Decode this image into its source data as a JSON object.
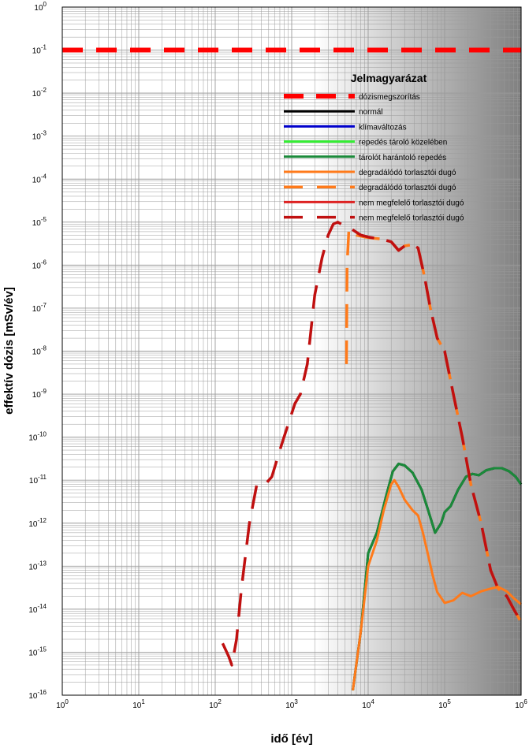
{
  "chart_data": {
    "type": "line",
    "xlabel": "idő [év]",
    "ylabel": "effektív dózis [mSv/év]",
    "x_scale": "log",
    "y_scale": "log",
    "xlim": [
      1,
      1000000
    ],
    "ylim": [
      1e-16,
      1
    ],
    "grid": true,
    "x_ticks": [
      {
        "base": "10",
        "exp": "0"
      },
      {
        "base": "10",
        "exp": "1"
      },
      {
        "base": "10",
        "exp": "2"
      },
      {
        "base": "10",
        "exp": "3"
      },
      {
        "base": "10",
        "exp": "4"
      },
      {
        "base": "10",
        "exp": "5"
      },
      {
        "base": "10",
        "exp": "6"
      }
    ],
    "y_ticks": [
      {
        "base": "10",
        "exp": "0"
      },
      {
        "base": "10",
        "exp": "-1"
      },
      {
        "base": "10",
        "exp": "-2"
      },
      {
        "base": "10",
        "exp": "-3"
      },
      {
        "base": "10",
        "exp": "-4"
      },
      {
        "base": "10",
        "exp": "-5"
      },
      {
        "base": "10",
        "exp": "-6"
      },
      {
        "base": "10",
        "exp": "-7"
      },
      {
        "base": "10",
        "exp": "-8"
      },
      {
        "base": "10",
        "exp": "-9"
      },
      {
        "base": "10",
        "exp": "-10"
      },
      {
        "base": "10",
        "exp": "-11"
      },
      {
        "base": "10",
        "exp": "-12"
      },
      {
        "base": "10",
        "exp": "-13"
      },
      {
        "base": "10",
        "exp": "-14"
      },
      {
        "base": "10",
        "exp": "-15"
      },
      {
        "base": "10",
        "exp": "-16"
      }
    ],
    "legend": {
      "title": "Jelmagyarázat",
      "placement": "upper-right"
    },
    "series": [
      {
        "name": "dózismegszorítás",
        "color": "#ff0000",
        "style": "dashed-thick",
        "points": [
          [
            1,
            0.1
          ],
          [
            1000000,
            0.1
          ]
        ]
      },
      {
        "name": "normál",
        "color": "#000000",
        "style": "solid",
        "points": [
          [
            6300,
            1.3e-16
          ],
          [
            8000,
            3e-15
          ],
          [
            10000,
            2e-13
          ],
          [
            13000,
            6e-13
          ],
          [
            17000,
            4e-12
          ],
          [
            21000,
            1.6e-11
          ],
          [
            25000,
            2.4e-11
          ],
          [
            30000,
            2.2e-11
          ],
          [
            38000,
            1.5e-11
          ],
          [
            50000,
            6e-12
          ],
          [
            62000,
            1.8e-12
          ],
          [
            75000,
            6e-13
          ],
          [
            90000,
            1e-12
          ],
          [
            100000,
            1.8e-12
          ],
          [
            120000,
            2.5e-12
          ],
          [
            150000,
            6e-12
          ],
          [
            190000,
            1.2e-11
          ],
          [
            230000,
            1.4e-11
          ],
          [
            280000,
            1.3e-11
          ],
          [
            350000,
            1.7e-11
          ],
          [
            450000,
            1.9e-11
          ],
          [
            560000,
            1.9e-11
          ],
          [
            700000,
            1.6e-11
          ],
          [
            850000,
            1.2e-11
          ],
          [
            1000000,
            8e-12
          ]
        ]
      },
      {
        "name": "klímaváltozás",
        "color": "#0000cc",
        "style": "solid",
        "points": []
      },
      {
        "name": "repedés tároló közelében",
        "color": "#33ee33",
        "style": "solid",
        "points": []
      },
      {
        "name": "tárolót harántoló repedés",
        "color": "#1a8a3a",
        "style": "solid",
        "points": [
          [
            6300,
            1.3e-16
          ],
          [
            8000,
            3e-15
          ],
          [
            10000,
            2e-13
          ],
          [
            13000,
            6e-13
          ],
          [
            17000,
            4e-12
          ],
          [
            21000,
            1.6e-11
          ],
          [
            25000,
            2.4e-11
          ],
          [
            30000,
            2.2e-11
          ],
          [
            38000,
            1.5e-11
          ],
          [
            50000,
            6e-12
          ],
          [
            62000,
            1.8e-12
          ],
          [
            75000,
            6e-13
          ],
          [
            90000,
            1e-12
          ],
          [
            100000,
            1.8e-12
          ],
          [
            120000,
            2.5e-12
          ],
          [
            150000,
            6e-12
          ],
          [
            190000,
            1.2e-11
          ],
          [
            230000,
            1.4e-11
          ],
          [
            280000,
            1.3e-11
          ],
          [
            350000,
            1.7e-11
          ],
          [
            450000,
            1.9e-11
          ],
          [
            560000,
            1.9e-11
          ],
          [
            700000,
            1.6e-11
          ],
          [
            850000,
            1.2e-11
          ],
          [
            1000000,
            8e-12
          ]
        ]
      },
      {
        "name": "degradálódó torlasztói dugó",
        "color": "#ff7a1a",
        "style": "solid",
        "points": [
          [
            6300,
            1.3e-16
          ],
          [
            8000,
            3e-15
          ],
          [
            10000,
            1e-13
          ],
          [
            13000,
            4e-13
          ],
          [
            16000,
            2e-12
          ],
          [
            20000,
            8e-12
          ],
          [
            22000,
            1e-11
          ],
          [
            25000,
            7e-12
          ],
          [
            30000,
            3.5e-12
          ],
          [
            38000,
            2e-12
          ],
          [
            45000,
            1.5e-12
          ],
          [
            52000,
            6e-13
          ],
          [
            60000,
            2e-13
          ],
          [
            70000,
            6e-14
          ],
          [
            80000,
            2.5e-14
          ],
          [
            100000,
            1.4e-14
          ],
          [
            130000,
            1.6e-14
          ],
          [
            170000,
            2.4e-14
          ],
          [
            220000,
            2e-14
          ],
          [
            300000,
            2.6e-14
          ],
          [
            400000,
            3e-14
          ],
          [
            500000,
            3.3e-14
          ],
          [
            650000,
            2.6e-14
          ],
          [
            800000,
            1.8e-14
          ],
          [
            1000000,
            1.3e-14
          ]
        ]
      },
      {
        "name": "degradálódó torlasztói dugó",
        "color": "#ff7a1a",
        "style": "dashed",
        "points": [
          [
            5200,
            5e-09
          ],
          [
            5300,
            1e-06
          ],
          [
            5600,
            7e-06
          ],
          [
            7000,
            5e-06
          ],
          [
            9000,
            4.5e-06
          ],
          [
            12000,
            4.2e-06
          ],
          [
            16000,
            4e-06
          ],
          [
            20000,
            3.5e-06
          ],
          [
            25000,
            2.2e-06
          ],
          [
            30000,
            2.8e-06
          ],
          [
            38000,
            3e-06
          ],
          [
            45000,
            2.5e-06
          ],
          [
            55000,
            5e-07
          ],
          [
            65000,
            1e-07
          ],
          [
            80000,
            2e-08
          ],
          [
            100000,
            1e-08
          ],
          [
            130000,
            1e-09
          ],
          [
            170000,
            1e-10
          ],
          [
            220000,
            8e-12
          ],
          [
            300000,
            1e-12
          ],
          [
            400000,
            8e-14
          ],
          [
            500000,
            3e-14
          ],
          [
            650000,
            2e-14
          ],
          [
            800000,
            1e-14
          ],
          [
            1000000,
            5e-15
          ]
        ]
      },
      {
        "name": "nem megfelelő torlasztói dugó",
        "color": "#dd2222",
        "style": "solid",
        "points": []
      },
      {
        "name": "nem megfelelő torlasztói dugó",
        "color": "#c01010",
        "style": "dashed",
        "points": [
          [
            125,
            1.6e-15
          ],
          [
            150,
            8e-16
          ],
          [
            165,
            5e-16
          ],
          [
            190,
            2e-15
          ],
          [
            220,
            3e-14
          ],
          [
            280,
            1e-12
          ],
          [
            350,
            8e-12
          ],
          [
            450,
            8e-12
          ],
          [
            550,
            1.2e-11
          ],
          [
            700,
            5e-11
          ],
          [
            900,
            2e-10
          ],
          [
            1100,
            6e-10
          ],
          [
            1300,
            1e-09
          ],
          [
            1600,
            5e-09
          ],
          [
            2000,
            2e-07
          ],
          [
            2500,
            1.5e-06
          ],
          [
            3000,
            5e-06
          ],
          [
            3500,
            9e-06
          ],
          [
            4000,
            1e-05
          ],
          [
            5000,
            8e-06
          ],
          [
            6000,
            7e-06
          ],
          [
            8000,
            5e-06
          ],
          [
            10000,
            4.5e-06
          ],
          [
            15000,
            4e-06
          ],
          [
            20000,
            3.5e-06
          ],
          [
            25000,
            2.2e-06
          ],
          [
            30000,
            2.8e-06
          ],
          [
            38000,
            3e-06
          ],
          [
            45000,
            2.5e-06
          ],
          [
            55000,
            5e-07
          ],
          [
            65000,
            1e-07
          ],
          [
            80000,
            2e-08
          ],
          [
            100000,
            1e-08
          ],
          [
            130000,
            1e-09
          ],
          [
            170000,
            1e-10
          ],
          [
            220000,
            8e-12
          ],
          [
            300000,
            1e-12
          ],
          [
            400000,
            8e-14
          ],
          [
            500000,
            3e-14
          ],
          [
            650000,
            2e-14
          ],
          [
            800000,
            1e-14
          ],
          [
            1000000,
            5e-15
          ]
        ]
      }
    ]
  },
  "colors": {
    "background_gradient_start": "#ffffff",
    "background_gradient_end": "#808080",
    "grid": "#9a9a9a"
  }
}
